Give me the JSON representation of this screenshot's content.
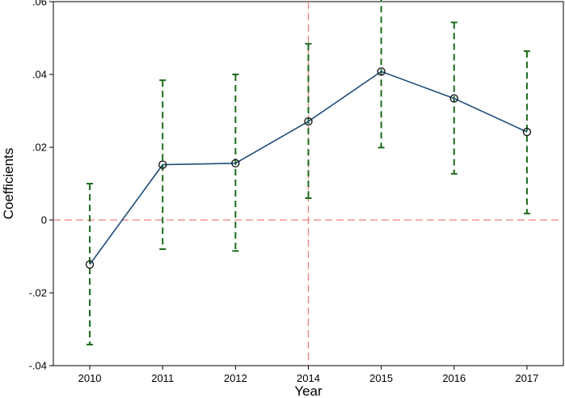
{
  "chart_data": {
    "type": "line",
    "xlabel": "Year",
    "ylabel": "Coefficients",
    "categories": [
      "2010",
      "2011",
      "2012",
      "2014",
      "2015",
      "2016",
      "2017"
    ],
    "ylim": [
      -0.04,
      0.06
    ],
    "yticks": [
      {
        "value": -0.04,
        "label": "-.04"
      },
      {
        "value": -0.02,
        "label": "-.02"
      },
      {
        "value": 0,
        "label": "0"
      },
      {
        "value": 0.02,
        "label": ".02"
      },
      {
        "value": 0.04,
        "label": ".04"
      },
      {
        "value": 0.06,
        "label": ".06"
      }
    ],
    "series": [
      {
        "values": [
          -0.0122,
          0.0152,
          0.0156,
          0.0271,
          0.0408,
          0.0334,
          0.0242
        ],
        "ci_lower": [
          -0.0342,
          -0.008,
          -0.0085,
          0.006,
          0.0199,
          0.0127,
          0.0018
        ],
        "ci_upper": [
          0.01,
          0.0384,
          0.04,
          0.0484,
          0.0617,
          0.0543,
          0.0464
        ]
      }
    ],
    "reference_lines": [
      {
        "axis": "y",
        "value": 0
      },
      {
        "axis": "x",
        "category": "2014"
      }
    ],
    "colors": {
      "line": "#1f4e79",
      "ci": "#1a6b1a",
      "reference": "#f08080",
      "marker": "#1a1a1a"
    },
    "grid": false
  }
}
